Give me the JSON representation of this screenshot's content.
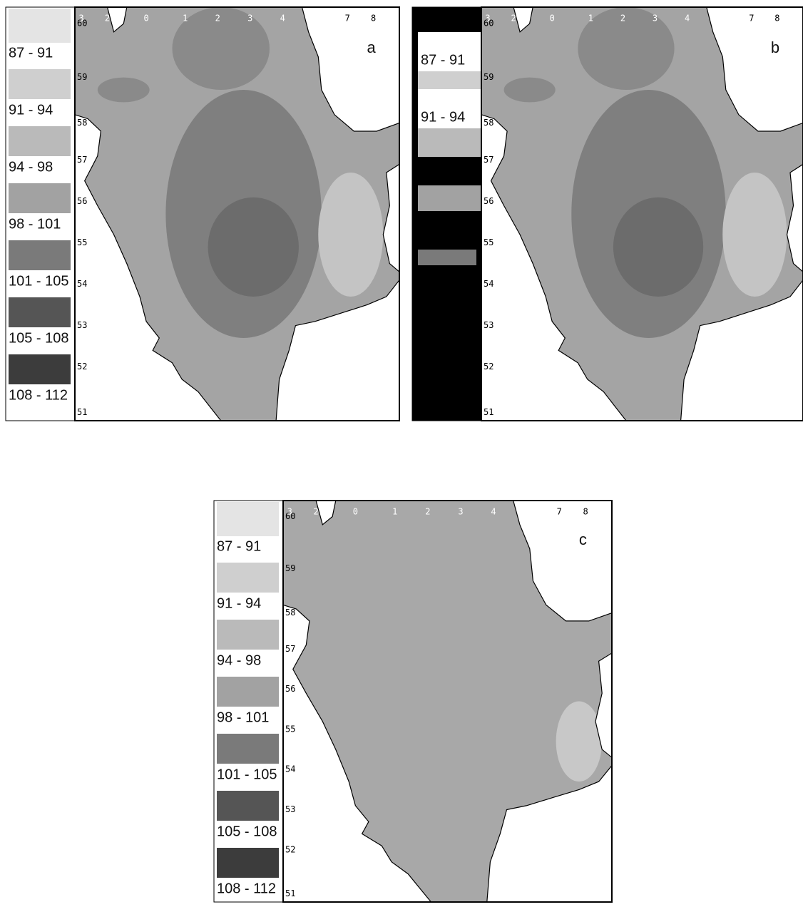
{
  "panels": [
    {
      "label": "a",
      "legend": [
        {
          "label": "87 - 91",
          "color": "#e4e4e4"
        },
        {
          "label": "91 - 94",
          "color": "#cfcfcf"
        },
        {
          "label": "94 - 98",
          "color": "#bababa"
        },
        {
          "label": "98 - 101",
          "color": "#a2a2a2"
        },
        {
          "label": "101 - 105",
          "color": "#7a7a7a"
        },
        {
          "label": "105 - 108",
          "color": "#555555"
        },
        {
          "label": "108 - 112",
          "color": "#3c3c3c"
        }
      ],
      "lon_labels": [
        "3",
        "2",
        "0",
        "1",
        "2",
        "3",
        "4",
        "7",
        "8"
      ],
      "lat_labels": [
        "60",
        "59",
        "58",
        "57",
        "56",
        "55",
        "54",
        "53",
        "52",
        "51"
      ]
    },
    {
      "label": "b",
      "legend": [
        {
          "label": "87 - 91",
          "color": "#cfcfcf"
        },
        {
          "label": "91 - 94",
          "color": "#bababa"
        }
      ],
      "lon_labels": [
        "3",
        "2",
        "0",
        "1",
        "2",
        "3",
        "4",
        "7",
        "8"
      ],
      "lat_labels": [
        "60",
        "59",
        "58",
        "57",
        "56",
        "55",
        "54",
        "53",
        "52",
        "51"
      ]
    },
    {
      "label": "c",
      "legend": [
        {
          "label": "87 - 91",
          "color": "#e4e4e4"
        },
        {
          "label": "91 - 94",
          "color": "#cfcfcf"
        },
        {
          "label": "94 - 98",
          "color": "#bababa"
        },
        {
          "label": "98 - 101",
          "color": "#a2a2a2"
        },
        {
          "label": "101 - 105",
          "color": "#7a7a7a"
        },
        {
          "label": "105 - 108",
          "color": "#555555"
        },
        {
          "label": "108 - 112",
          "color": "#3c3c3c"
        }
      ],
      "lon_labels": [
        "3",
        "2",
        "0",
        "1",
        "2",
        "3",
        "4",
        "7",
        "8"
      ],
      "lat_labels": [
        "60",
        "59",
        "58",
        "57",
        "56",
        "55",
        "54",
        "53",
        "52",
        "51"
      ]
    }
  ]
}
